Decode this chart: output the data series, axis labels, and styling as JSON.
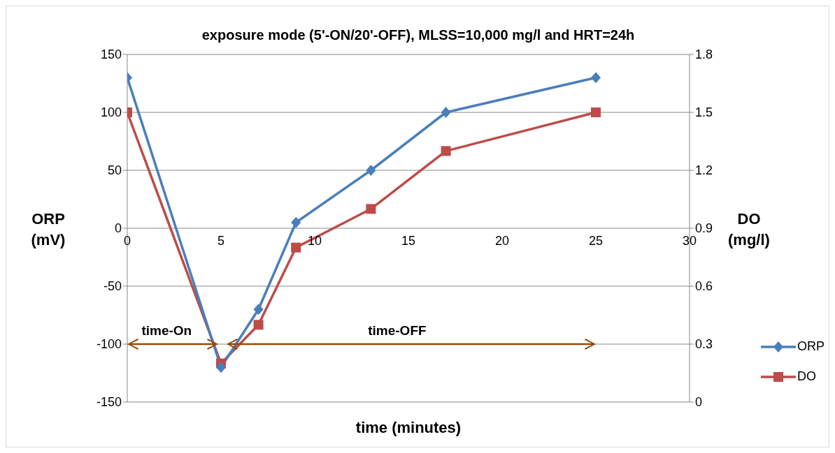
{
  "chart_data": {
    "type": "line",
    "title": "exposure mode (5'-ON/20'-OFF), MLSS=10,000 mg/l and HRT=24h",
    "xlabel": "time (minutes)",
    "ylabel": "ORP (mV)",
    "y2label": "DO (mg/l)",
    "x": [
      0,
      5,
      7,
      9,
      13,
      17,
      25
    ],
    "series": [
      {
        "name": "ORP",
        "color": "#4a7ebb",
        "marker": "diamond",
        "values": [
          130,
          -120,
          -70,
          5,
          50,
          100,
          130
        ]
      },
      {
        "name": "DO",
        "color": "#be4b48",
        "marker": "square",
        "axis": "y2",
        "values": [
          1.5,
          0.2,
          0.4,
          0.8,
          1.0,
          1.3,
          1.5
        ]
      }
    ],
    "xlim": [
      0,
      30
    ],
    "xticks": [
      0,
      5,
      10,
      15,
      20,
      25,
      30
    ],
    "ylim": [
      -150,
      150
    ],
    "yticks": [
      -150,
      -100,
      -50,
      0,
      50,
      100,
      150
    ],
    "y2lim": [
      0,
      1.8
    ],
    "y2ticks": [
      0,
      {
        "value": 0.3,
        "label": "0.3"
      },
      {
        "value": 0.6,
        "label": "0.6"
      },
      {
        "value": 0.9,
        "label": "0.9"
      },
      {
        "value": 1.2,
        "label": "1.2"
      },
      {
        "value": 1.5,
        "label": "1.5"
      },
      {
        "value": 1.8,
        "label": "1.8"
      }
    ],
    "grid": "y",
    "legend": "right",
    "annotations": [
      "time-On",
      "time-OFF"
    ]
  }
}
